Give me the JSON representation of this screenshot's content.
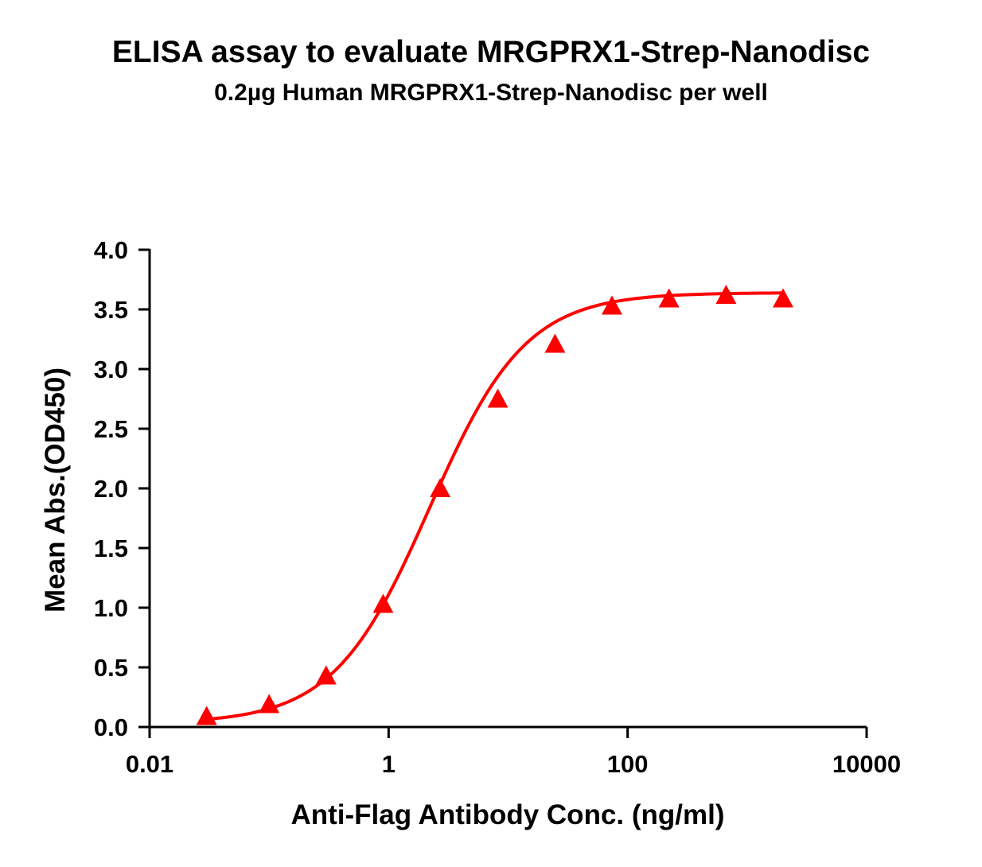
{
  "chart_data": {
    "type": "scatter",
    "title": "ELISA assay to evaluate MRGPRX1-Strep-Nanodisc",
    "subtitle": "0.2µg Human MRGPRX1-Strep-Nanodisc per well",
    "xlabel": "Anti-Flag Antibody Conc. (ng/ml)",
    "ylabel": "Mean Abs.(OD450)",
    "x_scale": "log",
    "xlim": [
      0.01,
      10000
    ],
    "ylim": [
      0,
      4.0
    ],
    "x_ticks": [
      0.01,
      1,
      100,
      10000
    ],
    "x_tick_labels": [
      "0.01",
      "1",
      "100",
      "10000"
    ],
    "y_ticks": [
      0,
      0.5,
      1.0,
      1.5,
      2.0,
      2.5,
      3.0,
      3.5,
      4.0
    ],
    "y_tick_labels": [
      "0.0",
      "0.5",
      "1.0",
      "1.5",
      "2.0",
      "2.5",
      "3.0",
      "3.5",
      "4.0"
    ],
    "grid": false,
    "marker": "triangle",
    "color": "#ff0000",
    "series": [
      {
        "x": [
          0.03,
          0.1,
          0.3,
          0.9,
          2.7,
          8.2,
          24.7,
          74,
          222,
          667,
          2000
        ],
        "y": [
          0.09,
          0.19,
          0.43,
          1.03,
          2.0,
          2.75,
          3.21,
          3.53,
          3.59,
          3.62,
          3.59
        ],
        "fit": "4PL"
      }
    ],
    "fit_params": {
      "bottom": 0.03,
      "top": 3.64,
      "ec50": 2.2,
      "hill": 1.08
    }
  }
}
